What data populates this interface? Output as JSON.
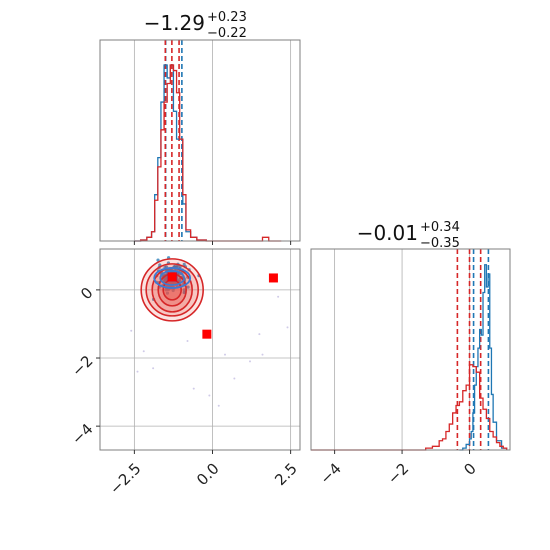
{
  "chart_data": [
    {
      "type": "histogram",
      "panel": "top-left marginal",
      "title": {
        "main": "−1.29",
        "upper": "+0.23",
        "lower": "−0.22"
      },
      "xlim": [
        -3.6,
        2.8
      ],
      "xticks": [
        -2.5,
        0.0,
        2.5
      ],
      "quantile_lines": {
        "blue": [
          -1.5,
          -0.98
        ],
        "red": [
          -1.51,
          -1.3,
          -1.07
        ]
      },
      "series": [
        {
          "name": "",
          "color": "#1f77b4",
          "x": [
            -2.5,
            -2.3,
            -2.1,
            -1.95,
            -1.85,
            -1.75,
            -1.65,
            -1.55,
            -1.45,
            -1.35,
            -1.25,
            -1.15,
            -1.05,
            -0.95,
            -0.85,
            -0.7,
            -0.5,
            -0.2
          ],
          "y": [
            0.0,
            0.005,
            0.02,
            0.05,
            0.25,
            0.45,
            0.75,
            0.95,
            0.88,
            0.95,
            0.7,
            0.55,
            0.55,
            0.2,
            0.05,
            0.02,
            0.005,
            0.0
          ]
        },
        {
          "name": "",
          "color": "#d62728",
          "x": [
            -2.5,
            -2.3,
            -2.1,
            -1.95,
            -1.85,
            -1.75,
            -1.65,
            -1.55,
            -1.45,
            -1.35,
            -1.25,
            -1.15,
            -1.05,
            -0.95,
            -0.85,
            -0.7,
            -0.5,
            -0.2,
            0.3,
            1.0,
            1.6,
            1.8,
            2.2
          ],
          "y": [
            0.0,
            0.005,
            0.02,
            0.05,
            0.22,
            0.4,
            0.6,
            0.75,
            0.85,
            0.95,
            0.92,
            0.8,
            0.55,
            0.25,
            0.06,
            0.02,
            0.005,
            0.0,
            0.0,
            0.0,
            0.02,
            0.0,
            0.0
          ]
        }
      ]
    },
    {
      "type": "scatter",
      "panel": "bottom-left 2D",
      "xlim": [
        -3.6,
        2.8
      ],
      "ylim": [
        -4.7,
        1.2
      ],
      "xticks": [
        -2.5,
        0.0,
        2.5
      ],
      "xticklabels": [
        "−2.5",
        "0.0",
        "2.5"
      ],
      "yticks": [
        -4,
        -2,
        0
      ],
      "yticklabels": [
        "−4",
        "−2",
        "0"
      ],
      "blue_center": [
        -1.29,
        0.35
      ],
      "red_center": [
        -1.29,
        0.0
      ],
      "markers": [
        {
          "color": "#0000ff",
          "x": -1.29,
          "y": 0.38
        },
        {
          "color": "#ff0000",
          "x": -1.29,
          "y": 0.38
        },
        {
          "color": "#ff0000",
          "x": -0.18,
          "y": -1.3
        },
        {
          "color": "#ff0000",
          "x": 1.95,
          "y": 0.35
        }
      ],
      "outliers": [
        {
          "x": -2.2,
          "y": -1.8
        },
        {
          "x": -1.9,
          "y": -2.3
        },
        {
          "x": -2.4,
          "y": -2.4
        },
        {
          "x": -0.6,
          "y": -2.9
        },
        {
          "x": -0.1,
          "y": -3.1
        },
        {
          "x": 0.2,
          "y": -3.4
        },
        {
          "x": 0.7,
          "y": -2.6
        },
        {
          "x": 1.2,
          "y": -2.1
        },
        {
          "x": 1.6,
          "y": -1.9
        },
        {
          "x": 1.5,
          "y": -1.3
        },
        {
          "x": 0.4,
          "y": -1.9
        },
        {
          "x": -0.8,
          "y": -1.5
        },
        {
          "x": -2.6,
          "y": -1.2
        },
        {
          "x": 2.1,
          "y": -0.2
        },
        {
          "x": 2.4,
          "y": -1.1
        }
      ]
    },
    {
      "type": "histogram",
      "panel": "bottom-right marginal",
      "title": {
        "main": "−0.01",
        "upper": "+0.34",
        "lower": "−0.35"
      },
      "xlim": [
        -4.7,
        1.2
      ],
      "xticks": [
        -4,
        -2,
        0
      ],
      "xticklabels": [
        "−4",
        "−2",
        "0"
      ],
      "quantile_lines": {
        "blue": [
          0.12,
          0.56
        ],
        "red": [
          -0.36,
          0.0,
          0.33
        ]
      },
      "series": [
        {
          "name": "",
          "color": "#1f77b4",
          "x": [
            -0.3,
            -0.2,
            -0.1,
            0.0,
            0.05,
            0.1,
            0.15,
            0.2,
            0.25,
            0.3,
            0.35,
            0.4,
            0.45,
            0.5,
            0.55,
            0.6,
            0.65,
            0.7,
            0.8,
            0.95,
            1.1
          ],
          "y": [
            0.0,
            0.01,
            0.03,
            0.06,
            0.1,
            0.2,
            0.35,
            0.45,
            0.55,
            0.65,
            0.62,
            0.85,
            1.0,
            0.88,
            0.95,
            0.55,
            0.3,
            0.15,
            0.05,
            0.01,
            0.0
          ]
        },
        {
          "name": "",
          "color": "#d62728",
          "x": [
            -4.7,
            -1.5,
            -1.3,
            -1.1,
            -0.9,
            -0.8,
            -0.7,
            -0.6,
            -0.5,
            -0.4,
            -0.3,
            -0.2,
            -0.1,
            0.0,
            0.1,
            0.2,
            0.3,
            0.4,
            0.5,
            0.6,
            0.7,
            0.8,
            0.9,
            1.0,
            1.1
          ],
          "y": [
            0.0,
            0.0,
            0.01,
            0.02,
            0.05,
            0.06,
            0.1,
            0.14,
            0.2,
            0.24,
            0.26,
            0.32,
            0.35,
            0.46,
            0.45,
            0.42,
            0.28,
            0.22,
            0.17,
            0.1,
            0.07,
            0.04,
            0.02,
            0.01,
            0.0
          ]
        }
      ]
    }
  ]
}
